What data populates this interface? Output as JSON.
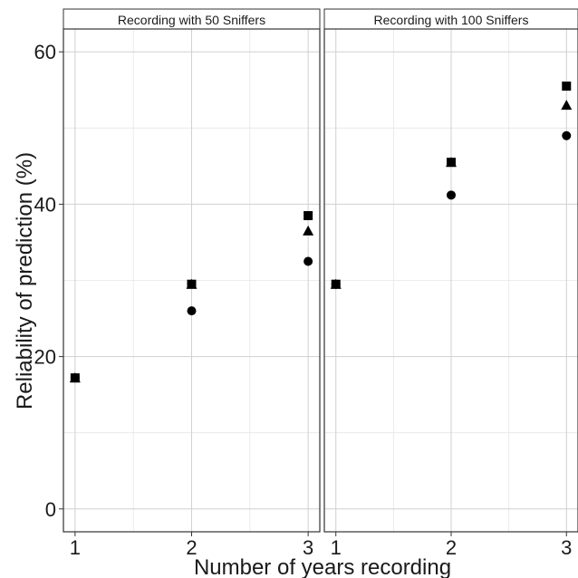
{
  "chart_data": {
    "type": "scatter",
    "xlabel": "Number of years recording",
    "ylabel": "Reliability of prediction (%)",
    "ylim": [
      -3,
      63
    ],
    "xlim": [
      0.9,
      3.1
    ],
    "y_ticks": [
      0,
      20,
      40,
      60
    ],
    "x_ticks": [
      1,
      2,
      3
    ],
    "grid": true,
    "legend": "none",
    "colors": {
      "points": "#000000",
      "grid": "#d0d0d0",
      "strip_bg": "#ffffff",
      "panel_border": "#333333"
    },
    "panels": [
      {
        "strip": "Recording with 50 Sniffers",
        "series": [
          {
            "shape": "square",
            "x": [
              1,
              2,
              3
            ],
            "y": [
              17.2,
              29.5,
              38.5
            ]
          },
          {
            "shape": "triangle",
            "x": [
              1,
              2,
              3
            ],
            "y": [
              17.2,
              29.5,
              36.5
            ]
          },
          {
            "shape": "circle",
            "x": [
              1,
              2,
              3
            ],
            "y": [
              17.2,
              26.0,
              32.5
            ]
          }
        ]
      },
      {
        "strip": "Recording with 100 Sniffers",
        "series": [
          {
            "shape": "square",
            "x": [
              1,
              2,
              3
            ],
            "y": [
              29.5,
              45.5,
              55.5
            ]
          },
          {
            "shape": "triangle",
            "x": [
              1,
              2,
              3
            ],
            "y": [
              29.5,
              45.5,
              53.0
            ]
          },
          {
            "shape": "circle",
            "x": [
              1,
              2,
              3
            ],
            "y": [
              29.5,
              41.2,
              49.0
            ]
          }
        ]
      }
    ]
  }
}
